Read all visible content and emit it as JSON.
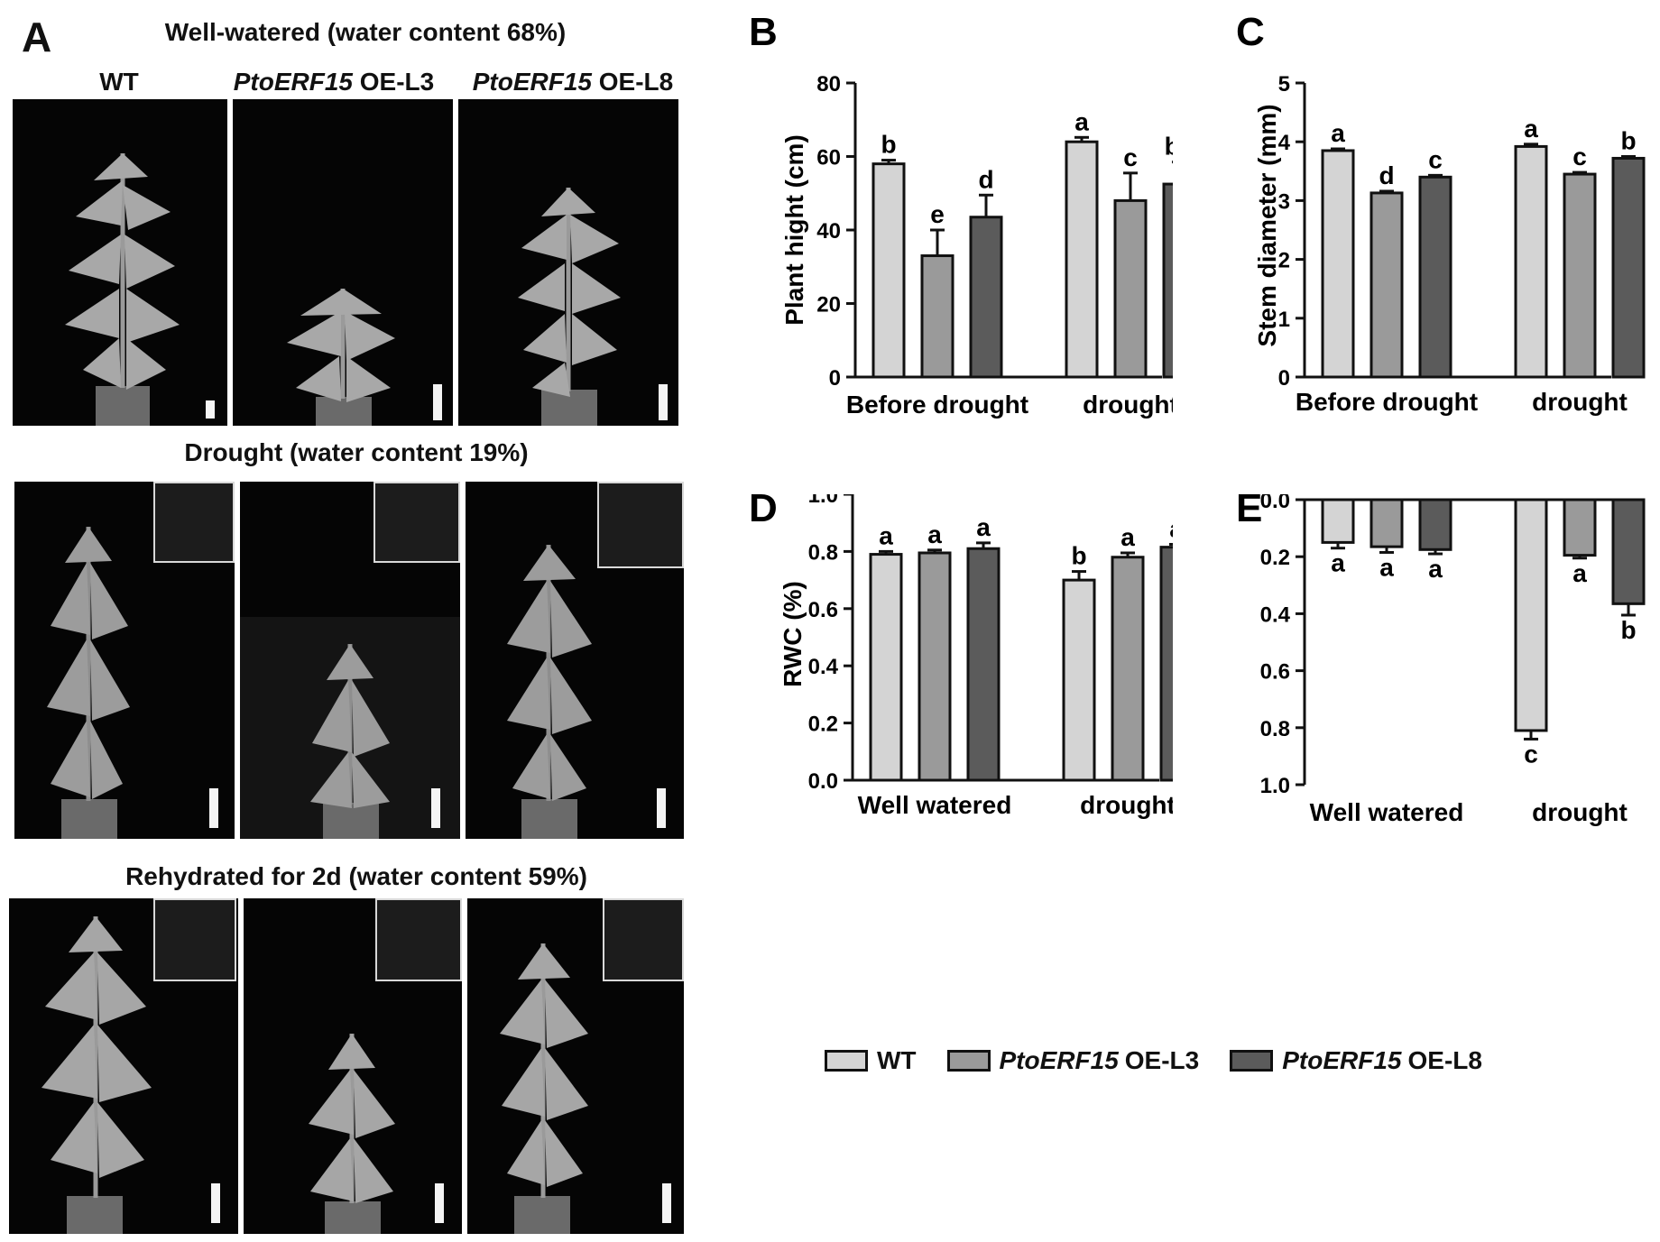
{
  "panel_a": {
    "letter": "A",
    "columns": [
      {
        "gene": "",
        "suffix": "WT"
      },
      {
        "gene": "PtoERF15",
        "suffix": "OE-L3"
      },
      {
        "gene": "PtoERF15",
        "suffix": "OE-L8"
      }
    ],
    "rows": [
      {
        "title": "Well-watered (water content 68%)"
      },
      {
        "title": "Drought (water content 19%)"
      },
      {
        "title": "Rehydrated for 2d (water content 59%)"
      }
    ]
  },
  "legend": [
    {
      "gene": "",
      "label": "WT",
      "color": "#d4d4d4"
    },
    {
      "gene": "PtoERF15",
      "label": "OE-L3",
      "color": "#9a9a9a"
    },
    {
      "gene": "PtoERF15",
      "label": "OE-L8",
      "color": "#5b5b5b"
    }
  ],
  "chart_data": [
    {
      "letter": "B",
      "type": "bar",
      "ylabel": "Plant hight (cm)",
      "ylim": [
        0,
        80
      ],
      "yticks": [
        0,
        20,
        40,
        60,
        80
      ],
      "categories": [
        "Before drought",
        "drought"
      ],
      "series": [
        {
          "name": "WT",
          "values": [
            58,
            64
          ],
          "errors": [
            1,
            1.2
          ],
          "letters": [
            "b",
            "a"
          ]
        },
        {
          "name": "PtoERF15 OE-L3",
          "values": [
            33,
            48
          ],
          "errors": [
            7,
            7.5
          ],
          "letters": [
            "e",
            "c"
          ]
        },
        {
          "name": "PtoERF15 OE-L8",
          "values": [
            43.5,
            52.5
          ],
          "errors": [
            6,
            6
          ],
          "letters": [
            "d",
            "bc"
          ]
        }
      ]
    },
    {
      "letter": "C",
      "type": "bar",
      "ylabel": "Stem diameter (mm)",
      "ylim": [
        0,
        5
      ],
      "yticks": [
        0,
        1,
        2,
        3,
        4,
        5
      ],
      "categories": [
        "Before drought",
        "drought"
      ],
      "series": [
        {
          "name": "WT",
          "values": [
            3.85,
            3.92
          ],
          "errors": [
            0.03,
            0.04
          ],
          "letters": [
            "a",
            "a"
          ]
        },
        {
          "name": "PtoERF15 OE-L3",
          "values": [
            3.13,
            3.45
          ],
          "errors": [
            0.03,
            0.03
          ],
          "letters": [
            "d",
            "c"
          ]
        },
        {
          "name": "PtoERF15 OE-L8",
          "values": [
            3.4,
            3.72
          ],
          "errors": [
            0.03,
            0.03
          ],
          "letters": [
            "c",
            "b"
          ]
        }
      ]
    },
    {
      "letter": "D",
      "type": "bar",
      "ylabel": "RWC (%)",
      "ylim": [
        0,
        1.0
      ],
      "yticks": [
        0.0,
        0.2,
        0.4,
        0.6,
        0.8,
        1.0
      ],
      "ytick_labels": [
        "0.0",
        "0.2",
        "0.4",
        "0.6",
        "0.8",
        "1.0"
      ],
      "categories": [
        "Well watered",
        "drought"
      ],
      "series": [
        {
          "name": "WT",
          "values": [
            0.79,
            0.7
          ],
          "errors": [
            0.01,
            0.03
          ],
          "letters": [
            "a",
            "b"
          ]
        },
        {
          "name": "PtoERF15 OE-L3",
          "values": [
            0.795,
            0.78
          ],
          "errors": [
            0.01,
            0.015
          ],
          "letters": [
            "a",
            "a"
          ]
        },
        {
          "name": "PtoERF15 OE-L8",
          "values": [
            0.81,
            0.815
          ],
          "errors": [
            0.02,
            0.01
          ],
          "letters": [
            "a",
            "a"
          ]
        }
      ]
    },
    {
      "letter": "E",
      "type": "bar",
      "ylabel": "",
      "ylim": [
        -1.0,
        0.0
      ],
      "yticks": [
        0.0,
        -0.2,
        -0.4,
        -0.6,
        -0.8,
        -1.0
      ],
      "ytick_labels": [
        "0.0",
        "0.2",
        "0.4",
        "0.6",
        "0.8",
        "1.0"
      ],
      "categories": [
        "Well watered",
        "drought"
      ],
      "series": [
        {
          "name": "WT",
          "values": [
            -0.15,
            -0.81
          ],
          "errors": [
            0.02,
            0.03
          ],
          "letters": [
            "a",
            "c"
          ]
        },
        {
          "name": "PtoERF15 OE-L3",
          "values": [
            -0.165,
            -0.195
          ],
          "errors": [
            0.02,
            0.01
          ],
          "letters": [
            "a",
            "a"
          ]
        },
        {
          "name": "PtoERF15 OE-L8",
          "values": [
            -0.175,
            -0.365
          ],
          "errors": [
            0.015,
            0.04
          ],
          "letters": [
            "a",
            "b"
          ]
        }
      ]
    }
  ]
}
